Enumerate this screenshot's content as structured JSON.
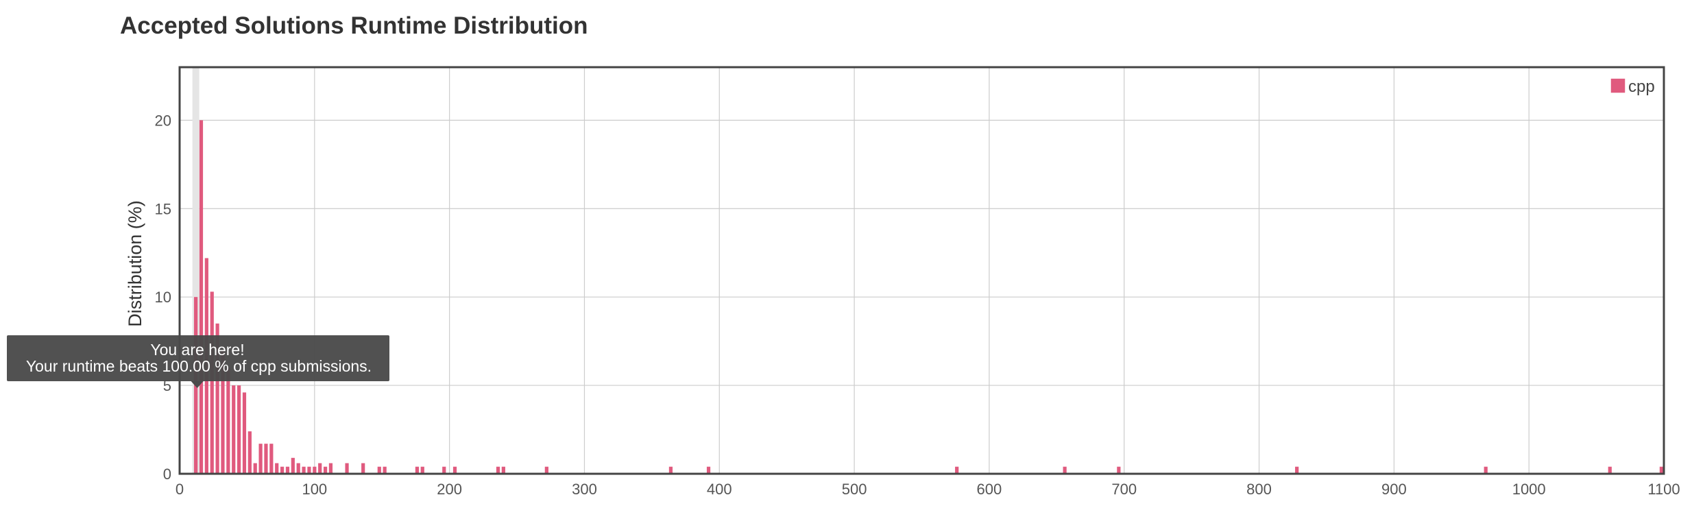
{
  "chart_data": {
    "type": "bar",
    "title": "Accepted Solutions Runtime Distribution",
    "xlabel": "",
    "ylabel": "Distribution (%)",
    "xlim": [
      0,
      1100
    ],
    "ylim": [
      0,
      23
    ],
    "x_ticks": [
      0,
      100,
      200,
      300,
      400,
      500,
      600,
      700,
      800,
      900,
      1000,
      1100
    ],
    "y_ticks": [
      0,
      5,
      10,
      15,
      20
    ],
    "grid": true,
    "legend_position": "top-right",
    "series": [
      {
        "name": "cpp",
        "color": "#e05a7e",
        "points": [
          [
            12,
            10
          ],
          [
            16,
            20
          ],
          [
            20,
            12.2
          ],
          [
            24,
            10.3
          ],
          [
            28,
            8.5
          ],
          [
            32,
            7
          ],
          [
            36,
            6
          ],
          [
            40,
            5
          ],
          [
            44,
            5
          ],
          [
            48,
            4.6
          ],
          [
            52,
            2.4
          ],
          [
            56,
            0.6
          ],
          [
            60,
            1.7
          ],
          [
            64,
            1.7
          ],
          [
            68,
            1.7
          ],
          [
            72,
            0.6
          ],
          [
            76,
            0.4
          ],
          [
            80,
            0.4
          ],
          [
            84,
            0.9
          ],
          [
            88,
            0.6
          ],
          [
            92,
            0.4
          ],
          [
            96,
            0.4
          ],
          [
            100,
            0.4
          ],
          [
            104,
            0.6
          ],
          [
            108,
            0.4
          ],
          [
            112,
            0.6
          ],
          [
            124,
            0.6
          ],
          [
            136,
            0.6
          ],
          [
            148,
            0.4
          ],
          [
            152,
            0.4
          ],
          [
            176,
            0.4
          ],
          [
            180,
            0.4
          ],
          [
            196,
            0.4
          ],
          [
            204,
            0.4
          ],
          [
            236,
            0.4
          ],
          [
            240,
            0.4
          ],
          [
            272,
            0.4
          ],
          [
            364,
            0.4
          ],
          [
            392,
            0.4
          ],
          [
            576,
            0.4
          ],
          [
            656,
            0.4
          ],
          [
            696,
            0.4
          ],
          [
            828,
            0.4
          ],
          [
            968,
            0.4
          ],
          [
            1060,
            0.4
          ],
          [
            1100,
            0.4
          ]
        ]
      }
    ],
    "highlight_x": 12,
    "tooltip": {
      "line1": "You are here!",
      "line2": "Your runtime beats 100.00 % of cpp submissions."
    }
  }
}
